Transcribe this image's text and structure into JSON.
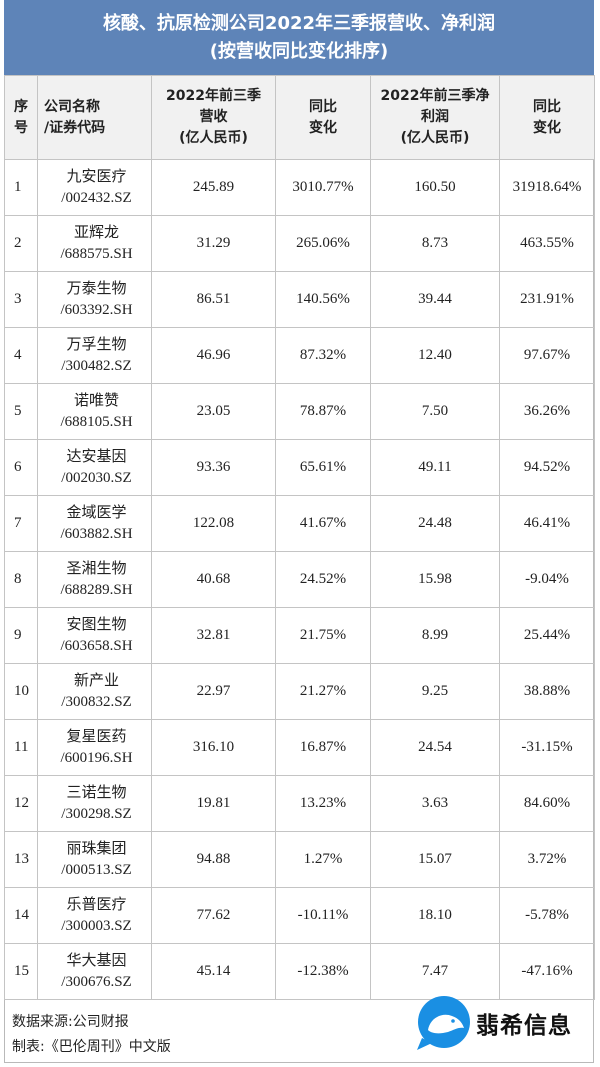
{
  "title": {
    "line1": "核酸、抗原检测公司2022年三季报营收、净利润",
    "line2": "(按营收同比变化排序)"
  },
  "headers": {
    "index": [
      "序",
      "号"
    ],
    "company": [
      "公司名称",
      "/证券代码"
    ],
    "revenue": [
      "2022年前三季",
      "营收",
      "(亿人民币)"
    ],
    "revenue_yoy": [
      "同比",
      "变化"
    ],
    "profit": [
      "2022年前三季净",
      "利润",
      "(亿人民币)"
    ],
    "profit_yoy": [
      "同比",
      "变化"
    ]
  },
  "rows": [
    {
      "idx": "1",
      "name": "九安医疗",
      "code": "/002432.SZ",
      "revenue": "245.89",
      "revenue_yoy": "3010.77%",
      "profit": "160.50",
      "profit_yoy": "31918.64%"
    },
    {
      "idx": "2",
      "name": "亚辉龙",
      "code": "/688575.SH",
      "revenue": "31.29",
      "revenue_yoy": "265.06%",
      "profit": "8.73",
      "profit_yoy": "463.55%"
    },
    {
      "idx": "3",
      "name": "万泰生物",
      "code": "/603392.SH",
      "revenue": "86.51",
      "revenue_yoy": "140.56%",
      "profit": "39.44",
      "profit_yoy": "231.91%"
    },
    {
      "idx": "4",
      "name": "万孚生物",
      "code": "/300482.SZ",
      "revenue": "46.96",
      "revenue_yoy": "87.32%",
      "profit": "12.40",
      "profit_yoy": "97.67%"
    },
    {
      "idx": "5",
      "name": "诺唯赞",
      "code": "/688105.SH",
      "revenue": "23.05",
      "revenue_yoy": "78.87%",
      "profit": "7.50",
      "profit_yoy": "36.26%"
    },
    {
      "idx": "6",
      "name": "达安基因",
      "code": "/002030.SZ",
      "revenue": "93.36",
      "revenue_yoy": "65.61%",
      "profit": "49.11",
      "profit_yoy": "94.52%"
    },
    {
      "idx": "7",
      "name": "金域医学",
      "code": "/603882.SH",
      "revenue": "122.08",
      "revenue_yoy": "41.67%",
      "profit": "24.48",
      "profit_yoy": "46.41%"
    },
    {
      "idx": "8",
      "name": "圣湘生物",
      "code": "/688289.SH",
      "revenue": "40.68",
      "revenue_yoy": "24.52%",
      "profit": "15.98",
      "profit_yoy": "-9.04%"
    },
    {
      "idx": "9",
      "name": "安图生物",
      "code": "/603658.SH",
      "revenue": "32.81",
      "revenue_yoy": "21.75%",
      "profit": "8.99",
      "profit_yoy": "25.44%"
    },
    {
      "idx": "10",
      "name": "新产业",
      "code": "/300832.SZ",
      "revenue": "22.97",
      "revenue_yoy": "21.27%",
      "profit": "9.25",
      "profit_yoy": "38.88%"
    },
    {
      "idx": "11",
      "name": "复星医药",
      "code": "/600196.SH",
      "revenue": "316.10",
      "revenue_yoy": "16.87%",
      "profit": "24.54",
      "profit_yoy": "-31.15%"
    },
    {
      "idx": "12",
      "name": "三诺生物",
      "code": "/300298.SZ",
      "revenue": "19.81",
      "revenue_yoy": "13.23%",
      "profit": "3.63",
      "profit_yoy": "84.60%"
    },
    {
      "idx": "13",
      "name": "丽珠集团",
      "code": "/000513.SZ",
      "revenue": "94.88",
      "revenue_yoy": "1.27%",
      "profit": "15.07",
      "profit_yoy": "3.72%"
    },
    {
      "idx": "14",
      "name": "乐普医疗",
      "code": "/300003.SZ",
      "revenue": "77.62",
      "revenue_yoy": "-10.11%",
      "profit": "18.10",
      "profit_yoy": "-5.78%"
    },
    {
      "idx": "15",
      "name": "华大基因",
      "code": "/300676.SZ",
      "revenue": "45.14",
      "revenue_yoy": "-12.38%",
      "profit": "7.47",
      "profit_yoy": "-47.16%"
    }
  ],
  "footer": {
    "source": "数据来源:公司财报",
    "made_by": "制表:《巴伦周刊》中文版"
  },
  "watermark": {
    "text": "翡希信息",
    "icon": "bird-bubble-icon",
    "color": "#1a8fe3"
  },
  "colors": {
    "title_bg": "#5e84b8",
    "header_bg": "#f1f1f1",
    "border": "#c4c4c4"
  }
}
